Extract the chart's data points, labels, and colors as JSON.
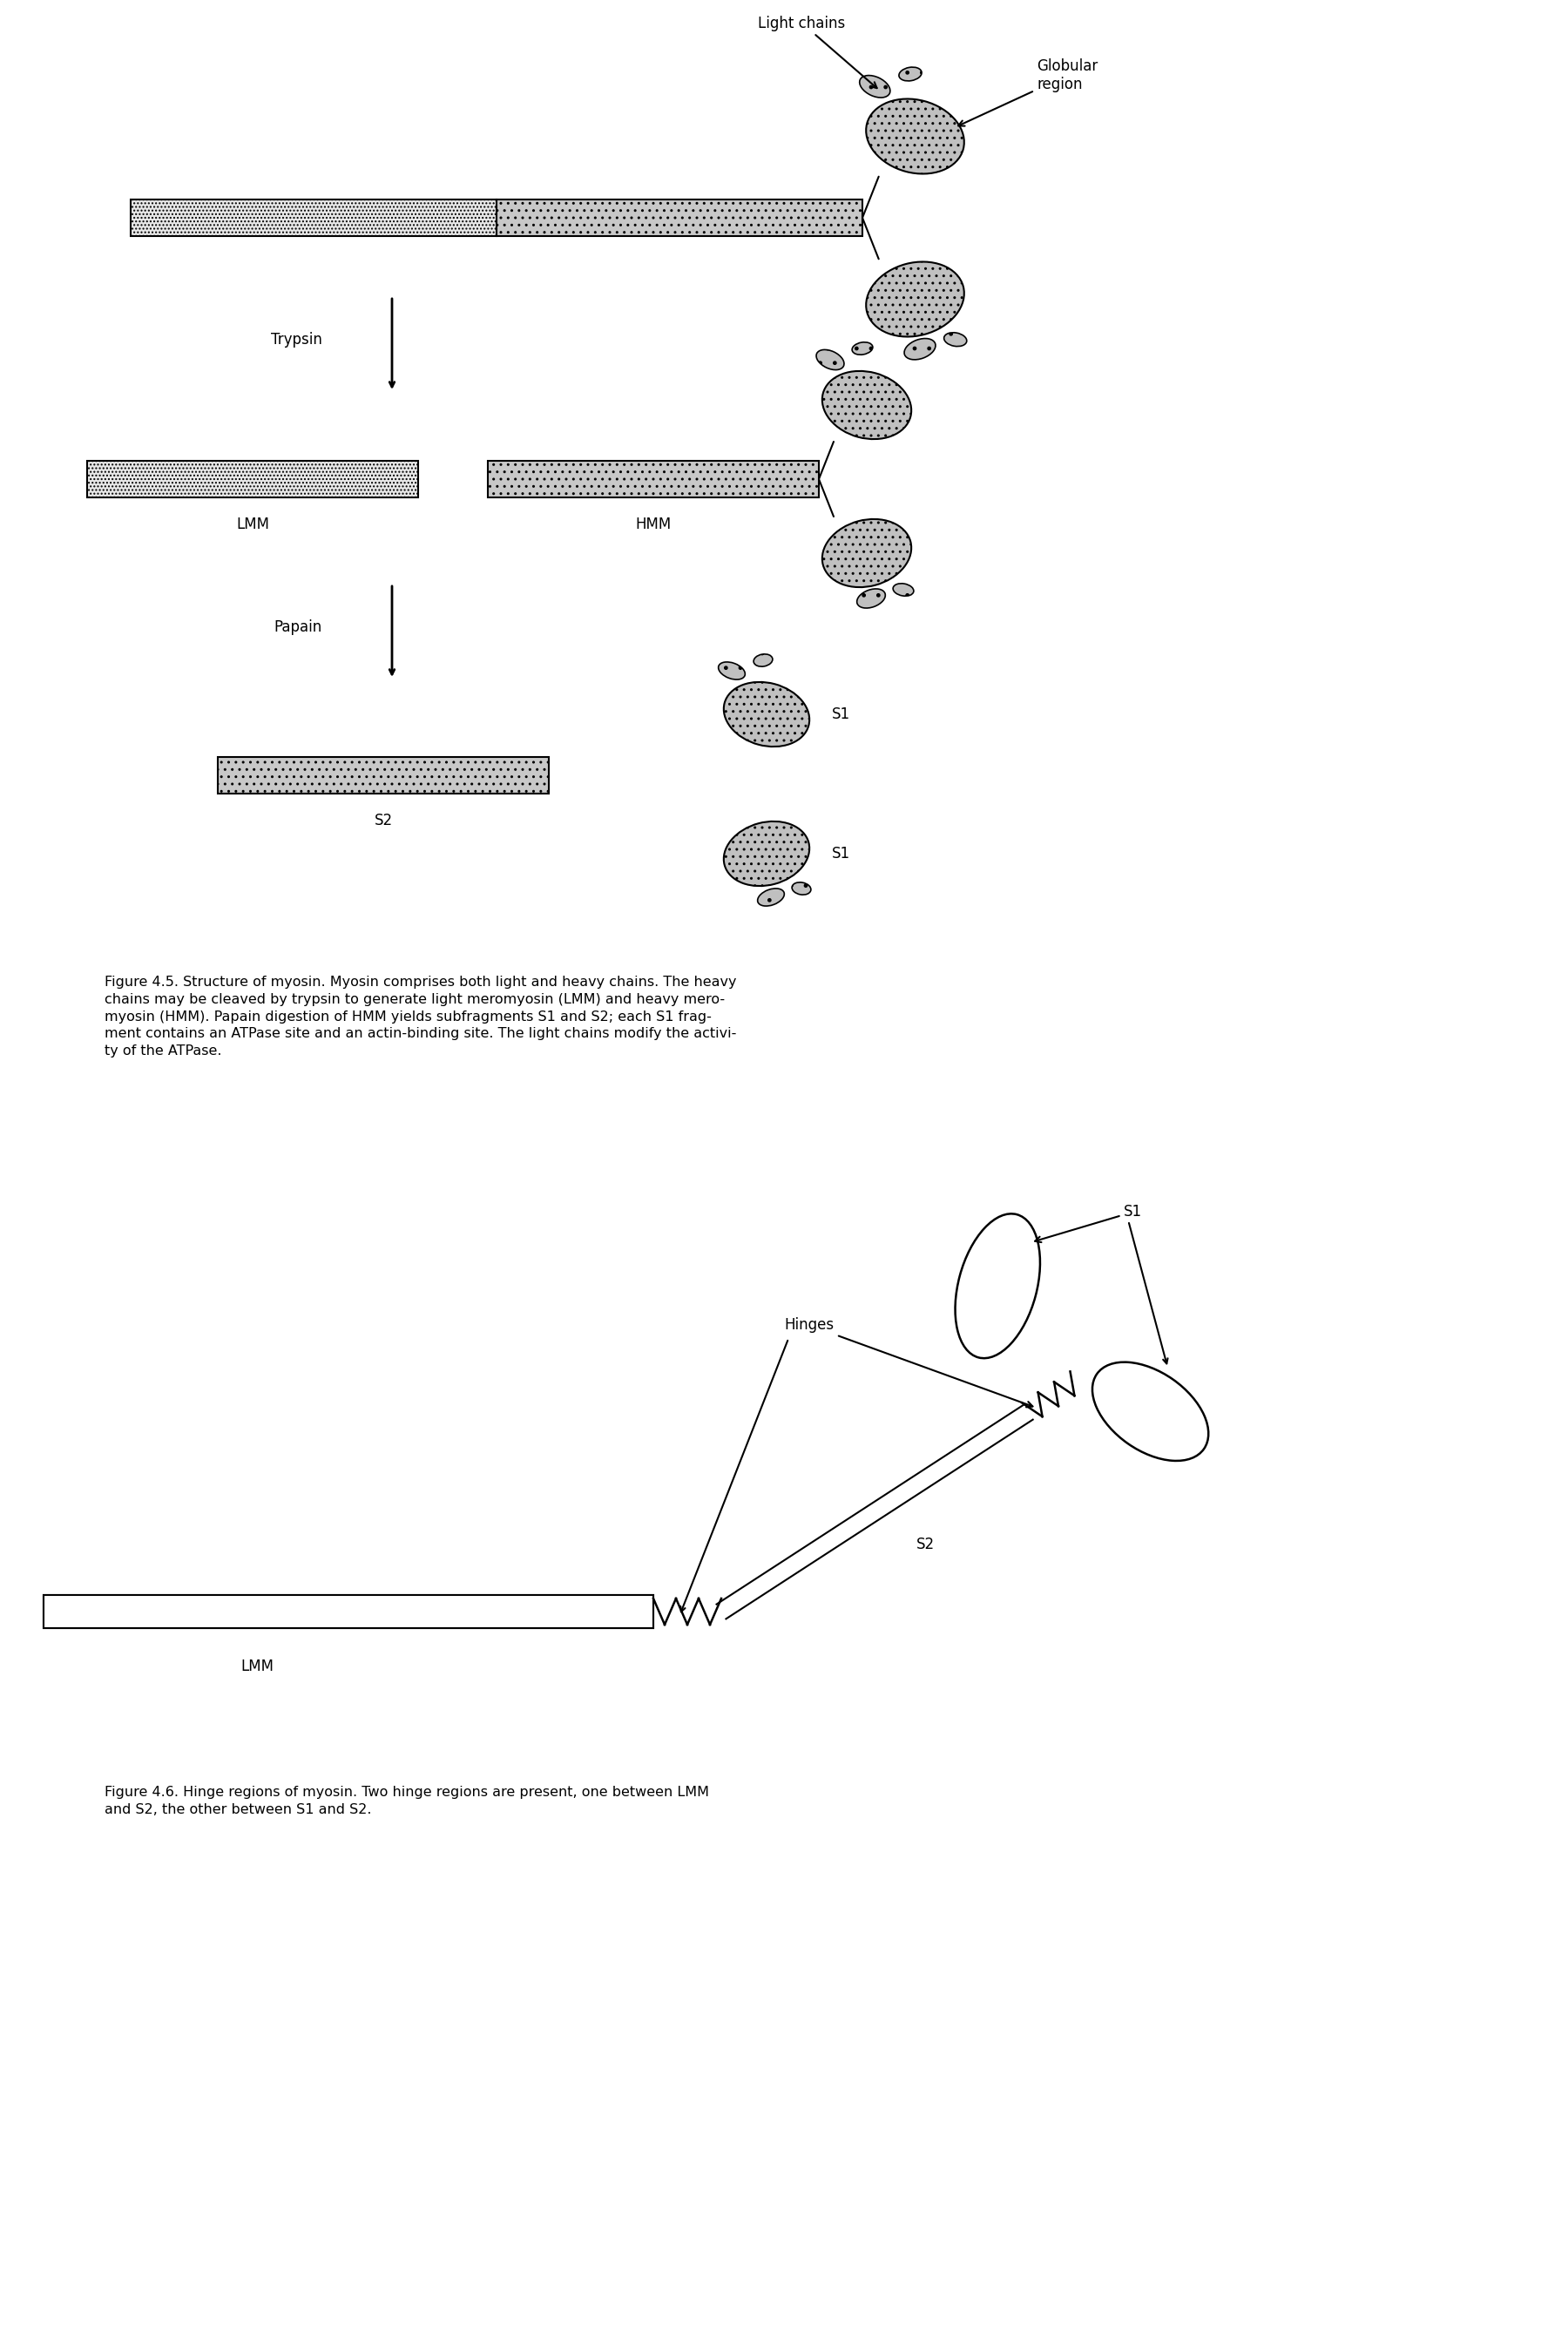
{
  "fig_width": 18.0,
  "fig_height": 27.0,
  "bg_color": "#ffffff",
  "lmm_color": "#e8e8e8",
  "hmm_color": "#c8c8c8",
  "glob_fill": "#c0c0c0",
  "caption_fig45": "Figure 4.5. Structure of myosin. Myosin comprises both light and heavy chains. The heavy\nchains may be cleaved by trypsin to generate light meromyosin (LMM) and heavy mero-\nmyosin (HMM). Papain digestion of HMM yields subfragments S1 and S2; each S1 frag-\nment contains an ATPase site and an actin-binding site. The light chains modify the activi-\nty of the ATPase.",
  "caption_fig46": "Figure 4.6. Hinge regions of myosin. Two hinge regions are present, one between LMM\nand S2, the other between S1 and S2."
}
